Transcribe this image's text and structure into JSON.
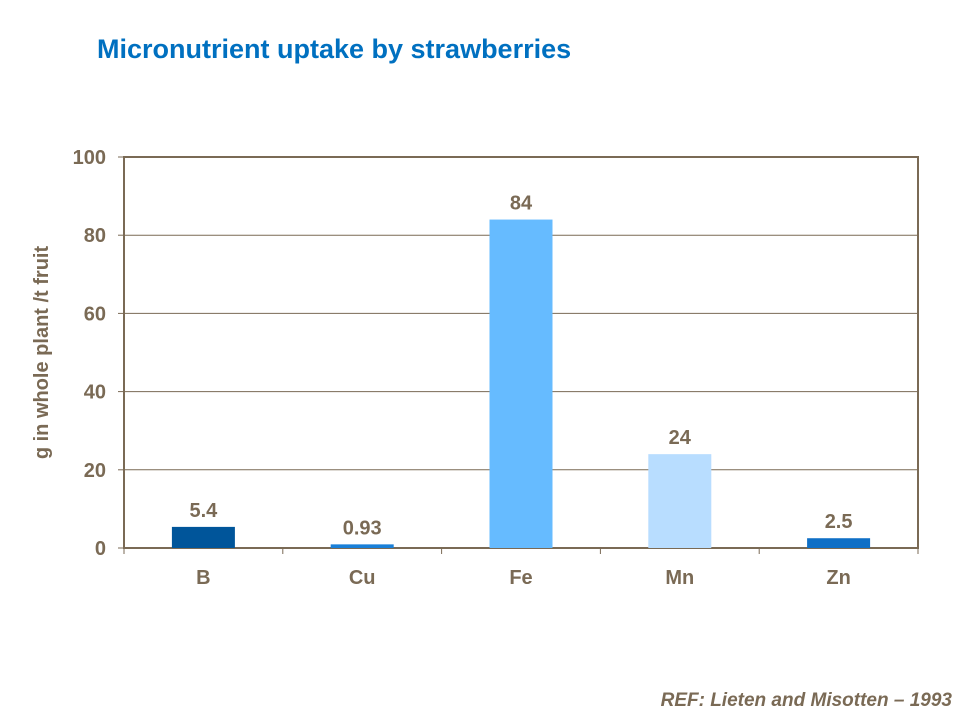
{
  "chart_data": {
    "type": "bar",
    "title": "Micronutrient uptake by strawberries",
    "ylabel": "g in whole plant /t fruit",
    "xlabel": "",
    "categories": [
      "B",
      "Cu",
      "Fe",
      "Mn",
      "Zn"
    ],
    "values": [
      5.4,
      0.93,
      84,
      24,
      2.5
    ],
    "data_labels": [
      "5.4",
      "0.93",
      "84",
      "24",
      "2.5"
    ],
    "colors": [
      "#00559a",
      "#1a80d8",
      "#66bbff",
      "#b8ddff",
      "#0f6fc6"
    ],
    "ylim": [
      0,
      100
    ],
    "yticks": [
      0,
      20,
      40,
      60,
      80,
      100
    ],
    "grid": true,
    "legend": "none"
  },
  "reference": "REF:  Lieten and Misotten – 1993"
}
